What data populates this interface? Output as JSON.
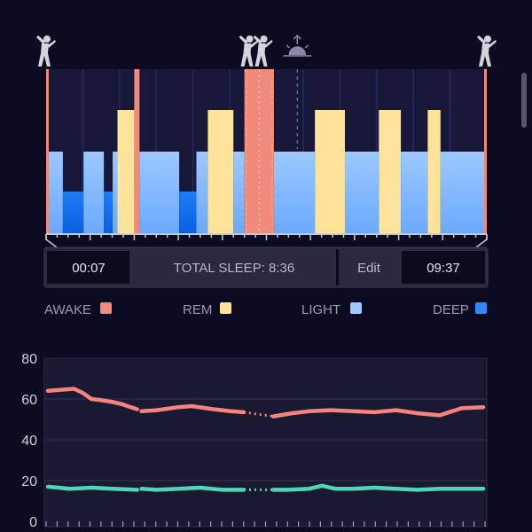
{
  "sleep_timeline": {
    "start_time": "00:07",
    "end_time": "09:37",
    "total_sleep": "TOTAL SLEEP: 8:36",
    "edit_label": "Edit",
    "markers": [
      {
        "icon": "wake-figure-icon",
        "time_fraction": 0.0
      },
      {
        "icon": "two-figures-icon",
        "time_fraction": 0.48
      },
      {
        "icon": "sunrise-icon",
        "time_fraction": 0.57
      },
      {
        "icon": "wake-figure-icon",
        "time_fraction": 1.0
      }
    ],
    "segments": [
      {
        "stage": "awake",
        "from": 0.0,
        "to": 0.006
      },
      {
        "stage": "light",
        "from": 0.006,
        "to": 0.038
      },
      {
        "stage": "deep",
        "from": 0.038,
        "to": 0.085
      },
      {
        "stage": "light",
        "from": 0.085,
        "to": 0.131
      },
      {
        "stage": "deep",
        "from": 0.131,
        "to": 0.151
      },
      {
        "stage": "light",
        "from": 0.151,
        "to": 0.162
      },
      {
        "stage": "rem",
        "from": 0.162,
        "to": 0.2
      },
      {
        "stage": "awake",
        "from": 0.2,
        "to": 0.212
      },
      {
        "stage": "light",
        "from": 0.212,
        "to": 0.302
      },
      {
        "stage": "deep",
        "from": 0.302,
        "to": 0.341
      },
      {
        "stage": "light",
        "from": 0.341,
        "to": 0.367
      },
      {
        "stage": "rem",
        "from": 0.367,
        "to": 0.425
      },
      {
        "stage": "light",
        "from": 0.425,
        "to": 0.45
      },
      {
        "stage": "awake",
        "from": 0.45,
        "to": 0.517
      },
      {
        "stage": "light",
        "from": 0.517,
        "to": 0.61
      },
      {
        "stage": "rem",
        "from": 0.61,
        "to": 0.678
      },
      {
        "stage": "light",
        "from": 0.678,
        "to": 0.755
      },
      {
        "stage": "rem",
        "from": 0.755,
        "to": 0.805
      },
      {
        "stage": "light",
        "from": 0.805,
        "to": 0.866
      },
      {
        "stage": "rem",
        "from": 0.866,
        "to": 0.895
      },
      {
        "stage": "light",
        "from": 0.895,
        "to": 0.994
      },
      {
        "stage": "awake",
        "from": 0.994,
        "to": 1.0
      }
    ]
  },
  "legend": [
    {
      "label": "AWAKE",
      "color": "#f08a7a"
    },
    {
      "label": "REM",
      "color": "#fde49a"
    },
    {
      "label": "LIGHT",
      "color": "#9cc8ff"
    },
    {
      "label": "DEEP",
      "color": "#2f86f5"
    }
  ],
  "colors": {
    "awake": "#f08a7a",
    "rem": "#fde49a",
    "light": "#8fc0ff",
    "deep": "#1a73f0",
    "line_top": "#f7837f",
    "line_bottom": "#4fd6b6"
  },
  "chart_data": {
    "type": "line",
    "ylim": [
      0,
      80
    ],
    "yticks": [
      "80",
      "60",
      "40",
      "20",
      "0"
    ],
    "x_range": [
      0,
      1
    ],
    "series": [
      {
        "color": "#f7837f",
        "x": [
          0.0,
          0.03,
          0.06,
          0.08,
          0.1,
          0.12,
          0.15,
          0.17,
          0.19,
          0.205,
          0.215,
          0.25,
          0.3,
          0.33,
          0.38,
          0.42,
          0.45,
          0.518,
          0.56,
          0.6,
          0.65,
          0.7,
          0.75,
          0.8,
          0.85,
          0.9,
          0.95,
          1.0
        ],
        "y": [
          64,
          64.5,
          65,
          63,
          60,
          59.5,
          58.5,
          57.5,
          56,
          55,
          54,
          54.5,
          56,
          56.5,
          55,
          54,
          53.5,
          51.5,
          53,
          54,
          54.5,
          54,
          53.5,
          54.5,
          53,
          52,
          55.5,
          56
        ]
      },
      {
        "color": "#4fd6b6",
        "x": [
          0.0,
          0.05,
          0.1,
          0.15,
          0.205,
          0.215,
          0.25,
          0.3,
          0.35,
          0.4,
          0.45,
          0.518,
          0.55,
          0.6,
          0.63,
          0.66,
          0.7,
          0.75,
          0.8,
          0.85,
          0.9,
          0.95,
          1.0
        ],
        "y": [
          17,
          16,
          16.5,
          16,
          15.5,
          16,
          15.5,
          16,
          16.5,
          15.5,
          15.5,
          15.5,
          15.5,
          16,
          17.5,
          16,
          16,
          16.5,
          16,
          15.5,
          16,
          16,
          16
        ]
      }
    ]
  }
}
